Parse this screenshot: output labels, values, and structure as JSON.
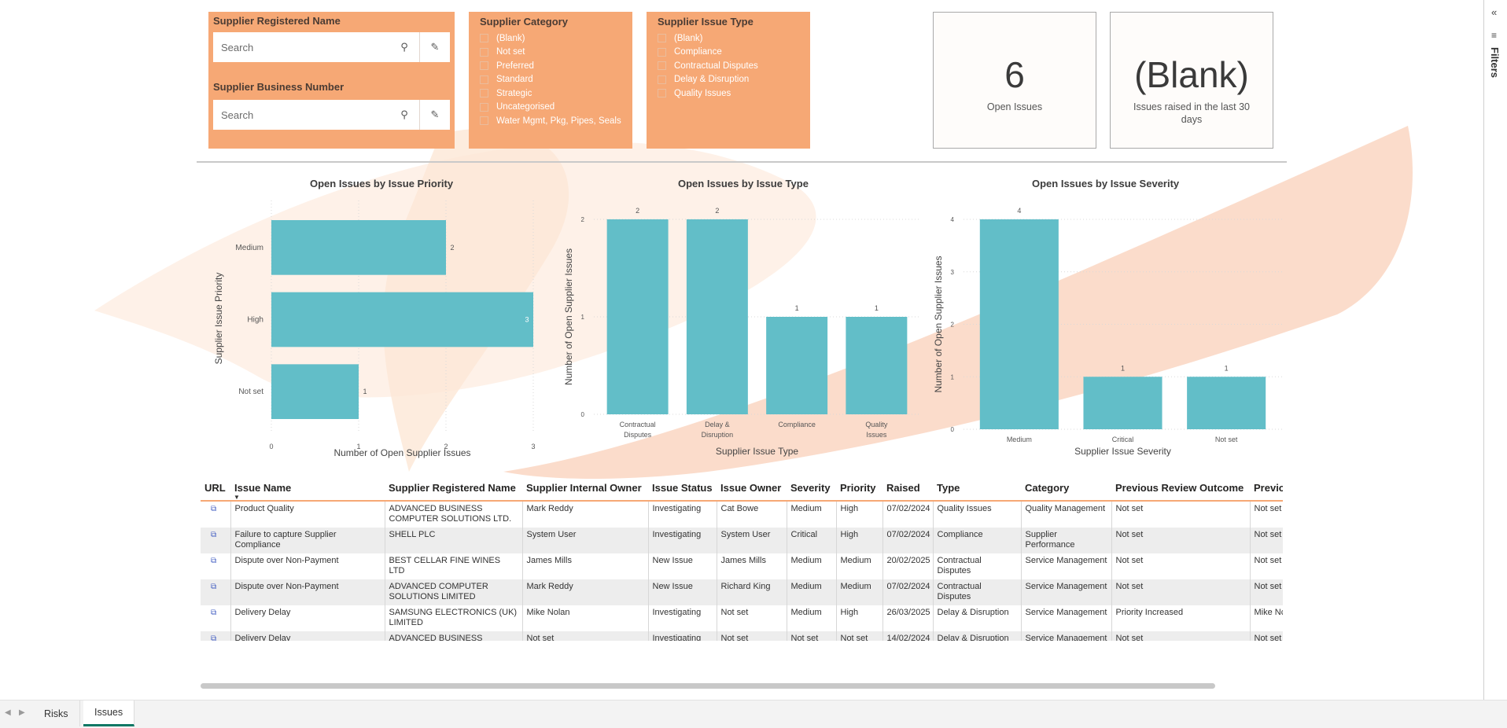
{
  "slicers": {
    "registered_name": {
      "title": "Supplier Registered Name",
      "placeholder": "Search"
    },
    "business_number": {
      "title": "Supplier Business Number",
      "placeholder": "Search"
    },
    "category": {
      "title": "Supplier Category",
      "items": [
        "(Blank)",
        "Not set",
        "Preferred",
        "Standard",
        "Strategic",
        "Uncategorised",
        "Water Mgmt, Pkg, Pipes, Seals ..."
      ]
    },
    "issue_type": {
      "title": "Supplier Issue Type",
      "items": [
        "(Blank)",
        "Compliance",
        "Contractual Disputes",
        "Delay & Disruption",
        "Quality Issues"
      ]
    }
  },
  "cards": {
    "open_issues": {
      "value": "6",
      "label": "Open Issues"
    },
    "recent_issues": {
      "value": "(Blank)",
      "label": "Issues raised in the last 30 days"
    }
  },
  "chart_data": [
    {
      "type": "bar",
      "orientation": "horizontal",
      "title": "Open Issues by Issue Priority",
      "categories": [
        "Medium",
        "High",
        "Not set"
      ],
      "values": [
        2,
        3,
        1
      ],
      "xlabel": "Number of Open Supplier Issues",
      "ylabel": "Supplier Issue Priority",
      "xlim": [
        0,
        3
      ],
      "ticks": [
        "0",
        "1",
        "2",
        "3"
      ],
      "color": "#62bec8"
    },
    {
      "type": "bar",
      "title": "Open Issues by Issue Type",
      "categories": [
        "Contractual Disputes",
        "Delay & Disruption",
        "Compliance",
        "Quality Issues"
      ],
      "values": [
        2,
        2,
        1,
        1
      ],
      "xlabel": "Supplier Issue Type",
      "ylabel": "Number of Open Supplier Issues",
      "ylim": [
        0,
        2
      ],
      "ticks": [
        "0",
        "1",
        "2"
      ],
      "color": "#62bec8"
    },
    {
      "type": "bar",
      "title": "Open Issues by Issue Severity",
      "categories": [
        "Medium",
        "Critical",
        "Not set"
      ],
      "values": [
        4,
        1,
        1
      ],
      "xlabel": "Supplier Issue Severity",
      "ylabel": "Number of Open Supplier Issues",
      "ylim": [
        0,
        4
      ],
      "ticks": [
        "0",
        "1",
        "2",
        "3",
        "4"
      ],
      "color": "#62bec8"
    }
  ],
  "table": {
    "columns": [
      "URL",
      "Issue Name",
      "Supplier Registered Name",
      "Supplier Internal Owner",
      "Issue Status",
      "Issue Owner",
      "Severity",
      "Priority",
      "Raised",
      "Type",
      "Category",
      "Previous Review Outcome",
      "Previo"
    ],
    "rows": [
      [
        "Product Quality",
        "ADVANCED BUSINESS COMPUTER SOLUTIONS LTD.",
        "Mark Reddy",
        "Investigating",
        "Cat Bowe",
        "Medium",
        "High",
        "07/02/2024",
        "Quality Issues",
        "Quality Management",
        "Not set",
        "Not set"
      ],
      [
        "Failure to capture Supplier Compliance",
        "SHELL PLC",
        "System User",
        "Investigating",
        "System User",
        "Critical",
        "High",
        "07/02/2024",
        "Compliance",
        "Supplier Performance",
        "Not set",
        "Not set"
      ],
      [
        "Dispute over Non-Payment",
        "BEST CELLAR FINE WINES LTD",
        "James Mills",
        "New Issue",
        "James Mills",
        "Medium",
        "Medium",
        "20/02/2025",
        "Contractual Disputes",
        "Service Management",
        "Not set",
        "Not set"
      ],
      [
        "Dispute over Non-Payment",
        "ADVANCED COMPUTER SOLUTIONS LIMITED",
        "Mark Reddy",
        "New Issue",
        "Richard King",
        "Medium",
        "Medium",
        "07/02/2024",
        "Contractual Disputes",
        "Service Management",
        "Not set",
        "Not set"
      ],
      [
        "Delivery Delay",
        "SAMSUNG ELECTRONICS (UK) LIMITED",
        "Mike Nolan",
        "Investigating",
        "Not set",
        "Medium",
        "High",
        "26/03/2025",
        "Delay & Disruption",
        "Service Management",
        "Priority Increased",
        "Mike Nc"
      ],
      [
        "Delivery Delay",
        "ADVANCED BUSINESS SOFTWARE AND SOLUTIONS LIMITED",
        "Not set",
        "Investigating",
        "Not set",
        "Not set",
        "Not set",
        "14/02/2024",
        "Delay & Disruption",
        "Service Management",
        "Not set",
        "Not set"
      ]
    ]
  },
  "filters_pane": {
    "label": "Filters"
  },
  "tabs": [
    {
      "label": "Risks",
      "active": false
    },
    {
      "label": "Issues",
      "active": true
    }
  ],
  "colors": {
    "accent": "#f6a875",
    "bar": "#62bec8",
    "tab_active": "#117865"
  }
}
